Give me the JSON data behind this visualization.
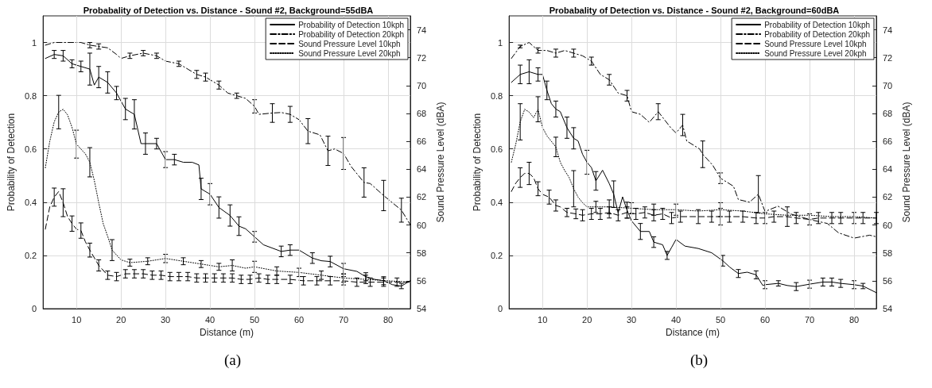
{
  "chart_data": [
    {
      "type": "line",
      "title": "Probabality of Detection vs. Distance - Sound #2, Background=55dBA",
      "xlabel": "Distance (m)",
      "ylabel": "Probability of Detection",
      "y2label": "Sound Pressure Level (dBA)",
      "annotations": [
        "(a)"
      ],
      "xlim": [
        2.5,
        85
      ],
      "xticks": [
        10,
        20,
        30,
        40,
        50,
        60,
        70,
        80
      ],
      "ylim": [
        0,
        1.1
      ],
      "yticks": [
        0,
        0.2,
        0.4,
        0.6,
        0.8,
        1
      ],
      "y2lim": [
        54,
        75
      ],
      "y2ticks": [
        54,
        56,
        58,
        60,
        62,
        64,
        66,
        68,
        70,
        72,
        74
      ],
      "grid": true,
      "legend": "top right",
      "marker": "none",
      "series": [
        {
          "name": "Probability of Detection 10kph",
          "color": "#000000",
          "line_style": "solid",
          "x": [
            3,
            5,
            7,
            9,
            11,
            13,
            14,
            15,
            17,
            19,
            21,
            23,
            24.5,
            25.5,
            28,
            30,
            32,
            34,
            36,
            37.5,
            38,
            40,
            42,
            44.5,
            46.5,
            48,
            50,
            52,
            56,
            58,
            60,
            63,
            65,
            67,
            70,
            73,
            75,
            77,
            79,
            81,
            83,
            85
          ],
          "values": [
            0.94,
            0.955,
            0.95,
            0.92,
            0.91,
            0.9,
            0.84,
            0.87,
            0.85,
            0.81,
            0.75,
            0.73,
            0.62,
            0.62,
            0.62,
            0.56,
            0.56,
            0.55,
            0.55,
            0.54,
            0.45,
            0.43,
            0.38,
            0.35,
            0.31,
            0.3,
            0.27,
            0.24,
            0.215,
            0.22,
            0.22,
            0.19,
            0.18,
            0.177,
            0.15,
            0.14,
            0.12,
            0.11,
            0.105,
            0.09,
            0.085,
            0.105
          ],
          "errors": [
            null,
            0.015,
            0.02,
            0.015,
            0.02,
            0.06,
            null,
            0.04,
            0.04,
            0.025,
            0.04,
            0.055,
            null,
            0.04,
            0.02,
            0.03,
            0.02,
            null,
            null,
            null,
            0.04,
            0.04,
            0.04,
            0.04,
            0.035,
            null,
            0.02,
            null,
            0.02,
            0.02,
            null,
            0.02,
            null,
            0.02,
            0.02,
            null,
            0.015,
            null,
            0.015,
            null,
            0.01,
            null
          ]
        },
        {
          "name": "Probability of Detection 20kph",
          "color": "#000000",
          "line_style": "dashdot",
          "x": [
            3,
            5,
            8,
            11,
            13,
            15,
            17,
            19,
            20,
            22,
            25,
            28,
            30,
            33,
            35,
            37,
            39,
            42,
            44,
            46,
            48,
            50,
            51,
            54,
            56,
            58,
            60,
            62,
            64.7,
            66.5,
            68,
            70,
            71.7,
            74.6,
            76,
            79,
            83,
            85
          ],
          "values": [
            0.99,
            1,
            1,
            1,
            0.99,
            0.985,
            0.98,
            0.955,
            0.94,
            0.95,
            0.96,
            0.95,
            0.93,
            0.92,
            0.9,
            0.88,
            0.87,
            0.84,
            0.81,
            0.8,
            0.79,
            0.76,
            0.73,
            0.735,
            0.737,
            0.73,
            0.71,
            0.667,
            0.653,
            0.593,
            0.6,
            0.583,
            0.534,
            0.474,
            0.47,
            0.425,
            0.37,
            0.315
          ],
          "errors": [
            null,
            null,
            null,
            null,
            0.01,
            0.01,
            null,
            null,
            null,
            0.01,
            0.01,
            0.01,
            null,
            0.01,
            null,
            0.015,
            0.015,
            0.015,
            null,
            0.01,
            null,
            0.025,
            null,
            0.035,
            null,
            0.03,
            null,
            0.047,
            null,
            0.055,
            null,
            0.06,
            null,
            0.055,
            null,
            0.057,
            0.045,
            null
          ]
        },
        {
          "name": "Sound Pressure Level 10kph",
          "color": "#000000",
          "line_style": "dashed",
          "axis": "y2",
          "x": [
            3,
            4,
            5,
            6,
            7,
            8,
            9,
            10,
            11,
            12,
            13,
            15,
            17,
            19,
            21,
            23,
            25,
            27,
            29,
            31,
            33,
            35,
            37,
            39,
            41,
            43,
            45,
            47,
            49,
            51,
            53,
            55,
            58,
            61,
            64,
            67,
            70,
            73,
            76,
            79,
            82,
            85
          ],
          "values": [
            59.7,
            61.3,
            62.0,
            62.4,
            61.6,
            60.6,
            60.1,
            59.7,
            59.6,
            58.8,
            58.2,
            57.1,
            56.4,
            56.3,
            56.5,
            56.5,
            56.5,
            56.4,
            56.4,
            56.3,
            56.3,
            56.3,
            56.2,
            56.2,
            56.2,
            56.2,
            56.2,
            56.1,
            56.1,
            56.2,
            56.1,
            56.1,
            56.1,
            56.0,
            56.0,
            56.0,
            56.0,
            55.9,
            55.9,
            55.9,
            55.9,
            55.9
          ],
          "errors": [
            null,
            null,
            0.65,
            null,
            1.0,
            null,
            0.55,
            null,
            0.55,
            null,
            0.5,
            0.4,
            0.3,
            0.3,
            0.3,
            0.3,
            0.3,
            0.3,
            0.3,
            0.3,
            0.3,
            0.3,
            0.3,
            0.3,
            0.3,
            0.3,
            0.3,
            0.3,
            0.3,
            0.3,
            0.3,
            0.3,
            0.3,
            0.3,
            0.3,
            0.3,
            0.3,
            0.3,
            0.3,
            0.3,
            0.3,
            null
          ]
        },
        {
          "name": "Sound Pressure Level 20kph",
          "color": "#000000",
          "line_style": "dotted",
          "axis": "y2",
          "x": [
            3,
            4,
            5,
            6,
            7,
            8,
            9,
            10,
            12,
            13,
            14,
            15,
            16,
            17,
            18,
            20,
            22,
            26,
            30,
            34,
            38,
            42,
            45,
            48,
            50,
            55,
            60,
            65,
            70,
            75,
            80,
            85
          ],
          "values": [
            64.1,
            66.0,
            67.4,
            68.1,
            68.3,
            67.9,
            67.0,
            65.8,
            65.1,
            64.5,
            63.2,
            61.6,
            60.1,
            59.2,
            58.2,
            57.5,
            57.3,
            57.4,
            57.6,
            57.4,
            57.2,
            57.0,
            57.1,
            56.9,
            57.0,
            56.7,
            56.6,
            56.4,
            56.2,
            56.1,
            56.0,
            55.9
          ],
          "errors": [
            null,
            null,
            null,
            1.2,
            null,
            null,
            null,
            1.0,
            null,
            1.05,
            null,
            null,
            null,
            null,
            0.75,
            null,
            0.25,
            0.25,
            0.3,
            0.25,
            0.25,
            0.25,
            0.4,
            null,
            0.4,
            0.3,
            0.3,
            0.3,
            0.3,
            0.3,
            null,
            null
          ]
        }
      ]
    },
    {
      "type": "line",
      "title": "Probabality of Detection vs. Distance - Sound #2, Background=60dBA",
      "xlabel": "Distance (m)",
      "ylabel": "Probability of Detection",
      "y2label": "Sound Pressure Level (dBA)",
      "annotations": [
        "(b)"
      ],
      "xlim": [
        2.5,
        85
      ],
      "xticks": [
        10,
        20,
        30,
        40,
        50,
        60,
        70,
        80
      ],
      "ylim": [
        0,
        1.1
      ],
      "yticks": [
        0,
        0.2,
        0.4,
        0.6,
        0.8,
        1
      ],
      "y2lim": [
        54,
        75
      ],
      "y2ticks": [
        54,
        56,
        58,
        60,
        62,
        64,
        66,
        68,
        70,
        72,
        74
      ],
      "grid": true,
      "legend": "top right",
      "marker": "none",
      "series": [
        {
          "name": "Probability of Detection 10kph",
          "color": "#000000",
          "line_style": "solid",
          "x": [
            3,
            5,
            7,
            9,
            10,
            11,
            12,
            13,
            14,
            15.5,
            17,
            18,
            19,
            20,
            21,
            22,
            23.5,
            25,
            26,
            27,
            28,
            29,
            30,
            32,
            34,
            35,
            37,
            38,
            39,
            40,
            42,
            45,
            48,
            50.5,
            52,
            54,
            56,
            58,
            59.5,
            60,
            63,
            65,
            67,
            70,
            73,
            75,
            77,
            80,
            82,
            85
          ],
          "values": [
            0.85,
            0.88,
            0.89,
            0.88,
            0.88,
            0.82,
            0.77,
            0.75,
            0.74,
            0.68,
            0.64,
            0.63,
            0.58,
            0.55,
            0.53,
            0.48,
            0.52,
            0.47,
            0.43,
            0.36,
            0.42,
            0.37,
            0.33,
            0.29,
            0.29,
            0.25,
            0.24,
            0.2,
            0.23,
            0.26,
            0.235,
            0.226,
            0.21,
            0.18,
            0.157,
            0.132,
            0.137,
            0.127,
            0.087,
            0.09,
            0.095,
            0.087,
            0.083,
            0.092,
            0.1,
            0.1,
            0.095,
            0.09,
            0.085,
            0.06
          ],
          "errors": [
            null,
            0.035,
            0.045,
            0.025,
            null,
            0.035,
            null,
            0.03,
            null,
            0.04,
            0.04,
            null,
            null,
            0.045,
            null,
            0.035,
            null,
            null,
            0.05,
            null,
            null,
            0.03,
            null,
            0.03,
            null,
            0.02,
            null,
            0.015,
            null,
            null,
            null,
            null,
            null,
            0.02,
            null,
            0.015,
            null,
            0.015,
            null,
            0.015,
            0.01,
            null,
            0.015,
            0.015,
            0.015,
            0.015,
            0.015,
            0.015,
            0.01,
            null
          ]
        },
        {
          "name": "Probability of Detection 20kph",
          "color": "#000000",
          "line_style": "dashdot",
          "x": [
            3,
            5,
            7,
            9,
            11,
            13,
            15,
            17,
            19,
            21,
            23,
            25,
            27,
            29,
            30,
            32,
            34,
            36,
            38.8,
            40,
            41.5,
            42.4,
            45.3,
            46,
            48.2,
            50,
            52.9,
            54,
            56.5,
            58.5,
            60,
            62.9,
            65.9,
            70,
            74,
            76.5,
            80,
            83.5,
            85
          ],
          "values": [
            0.94,
            0.985,
            1,
            0.97,
            0.97,
            0.96,
            0.97,
            0.96,
            0.95,
            0.93,
            0.88,
            0.86,
            0.81,
            0.8,
            0.74,
            0.73,
            0.7,
            0.74,
            0.68,
            0.66,
            0.69,
            0.63,
            0.6,
            0.58,
            0.54,
            0.49,
            0.46,
            0.41,
            0.4,
            0.43,
            0.365,
            0.385,
            0.355,
            0.335,
            0.32,
            0.285,
            0.265,
            0.276,
            0.27
          ],
          "errors": [
            null,
            0.005,
            null,
            0.01,
            null,
            0.015,
            null,
            0.015,
            null,
            0.015,
            null,
            0.02,
            null,
            0.02,
            null,
            null,
            null,
            0.03,
            null,
            null,
            0.04,
            null,
            null,
            0.05,
            null,
            0.02,
            null,
            null,
            null,
            0.07,
            null,
            null,
            null,
            null,
            null,
            null,
            null,
            null,
            null
          ]
        },
        {
          "name": "Sound Pressure Level 10kph",
          "color": "#000000",
          "line_style": "dashed",
          "axis": "y2",
          "x": [
            3,
            4,
            5,
            6,
            7,
            8,
            9,
            10,
            11.5,
            13,
            14,
            15.5,
            17.5,
            19,
            21,
            23,
            25,
            27,
            29,
            31,
            33,
            35,
            37,
            39,
            41,
            45,
            48,
            50,
            52,
            55,
            58,
            60,
            62,
            65,
            67,
            70,
            72,
            75,
            77,
            80,
            82,
            85
          ],
          "values": [
            62.4,
            63.0,
            63.4,
            63.7,
            63.7,
            63.4,
            62.6,
            62.2,
            62.0,
            61.4,
            61.3,
            60.9,
            60.8,
            60.7,
            60.8,
            60.8,
            60.9,
            60.7,
            60.9,
            60.8,
            60.9,
            60.7,
            60.8,
            60.5,
            60.6,
            60.6,
            60.6,
            60.6,
            60.6,
            60.6,
            60.5,
            60.5,
            60.6,
            60.6,
            60.5,
            60.4,
            60.5,
            60.5,
            60.5,
            60.5,
            60.5,
            60.5
          ],
          "errors": [
            null,
            null,
            0.7,
            null,
            0.8,
            null,
            0.5,
            null,
            0.5,
            0.4,
            null,
            0.3,
            0.35,
            0.4,
            0.4,
            0.4,
            0.4,
            0.4,
            0.4,
            0.4,
            0.4,
            0.4,
            0.4,
            0.4,
            0.4,
            0.5,
            0.4,
            0.6,
            0.4,
            0.4,
            0.4,
            0.4,
            0.4,
            0.7,
            0.4,
            0.4,
            0.4,
            0.4,
            0.4,
            0.4,
            0.4,
            0.4
          ]
        },
        {
          "name": "Sound Pressure Level 20kph",
          "color": "#000000",
          "line_style": "dotted",
          "axis": "y2",
          "x": [
            3,
            4,
            5,
            6,
            7,
            8,
            9,
            10,
            11,
            12,
            13,
            14,
            15,
            16,
            17,
            18,
            19,
            20,
            22,
            25,
            30,
            35,
            40,
            45,
            50,
            55,
            60,
            65,
            70,
            75,
            80,
            85
          ],
          "values": [
            64.5,
            65.8,
            67.4,
            68.3,
            68.1,
            67.7,
            68.3,
            67.0,
            66.4,
            66.0,
            65.6,
            64.5,
            63.9,
            63.4,
            62.6,
            62.0,
            61.6,
            61.3,
            61.3,
            61.3,
            61.2,
            61.1,
            61.1,
            61.0,
            61.1,
            61.0,
            60.8,
            60.7,
            60.7,
            60.6,
            60.6,
            60.5
          ],
          "errors": [
            null,
            null,
            1.3,
            null,
            null,
            null,
            0.9,
            null,
            null,
            null,
            0.7,
            null,
            null,
            null,
            1.3,
            null,
            null,
            null,
            0.4,
            0.5,
            0.4,
            0.4,
            0.4,
            null,
            0.5,
            null,
            null,
            null,
            null,
            null,
            null,
            null
          ]
        }
      ]
    }
  ]
}
